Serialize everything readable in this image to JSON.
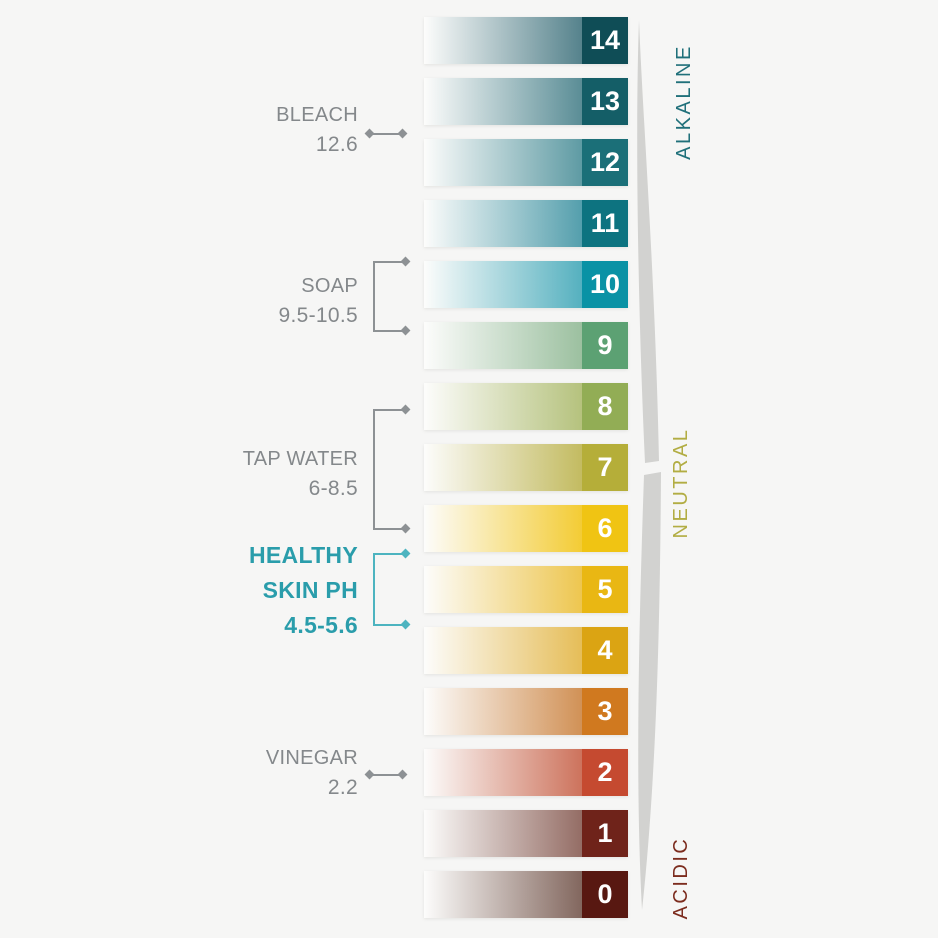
{
  "background": "#f6f6f5",
  "bars": [
    {
      "value": "14",
      "cap": "#0f4d56",
      "grad": "#52808a"
    },
    {
      "value": "13",
      "cap": "#145e67",
      "grad": "#578b94"
    },
    {
      "value": "12",
      "cap": "#1b6f78",
      "grad": "#5b99a2"
    },
    {
      "value": "11",
      "cap": "#0d7380",
      "grad": "#519dab"
    },
    {
      "value": "10",
      "cap": "#0a92a5",
      "grad": "#52afbe"
    },
    {
      "value": "9",
      "cap": "#5ca173",
      "grad": "#9abf9e"
    },
    {
      "value": "8",
      "cap": "#92ad55",
      "grad": "#b4c17b"
    },
    {
      "value": "7",
      "cap": "#b5ae39",
      "grad": "#c2ba5e"
    },
    {
      "value": "6",
      "cap": "#f0c413",
      "grad": "#f3cb31"
    },
    {
      "value": "5",
      "cap": "#e9b713",
      "grad": "#edc54c"
    },
    {
      "value": "4",
      "cap": "#dba413",
      "grad": "#e5bc55"
    },
    {
      "value": "3",
      "cap": "#d0791f",
      "grad": "#d08f53"
    },
    {
      "value": "2",
      "cap": "#c54a30",
      "grad": "#cc7059"
    },
    {
      "value": "1",
      "cap": "#6f231a",
      "grad": "#926a62"
    },
    {
      "value": "0",
      "cap": "#581811",
      "grad": "#80645b"
    }
  ],
  "annotations": [
    {
      "id": "bleach",
      "name": "BLEACH",
      "ph": "12.6",
      "lines": [
        "BLEACH",
        "12.6"
      ],
      "connector": "point",
      "color": "#84888b",
      "line_color": "#8d9194"
    },
    {
      "id": "soap",
      "name": "SOAP",
      "ph": "9.5-10.5",
      "lines": [
        "SOAP",
        "9.5-10.5"
      ],
      "connector": "range",
      "color": "#84888b",
      "line_color": "#8d9194"
    },
    {
      "id": "tap-water",
      "name": "TAP WATER",
      "ph": "6-8.5",
      "lines": [
        "TAP WATER",
        "6-8.5"
      ],
      "connector": "range",
      "color": "#84888b",
      "line_color": "#8d9194"
    },
    {
      "id": "healthy-skin",
      "name": "HEALTHY SKIN PH",
      "ph": "4.5-5.6",
      "lines": [
        "HEALTHY",
        "SKIN PH",
        "4.5-5.6"
      ],
      "connector": "range",
      "color": "#2a9dab",
      "line_color": "#4db4c0"
    },
    {
      "id": "vinegar",
      "name": "VINEGAR",
      "ph": "2.2",
      "lines": [
        "VINEGAR",
        "2.2"
      ],
      "connector": "point",
      "color": "#84888b",
      "line_color": "#8d9194"
    }
  ],
  "zones": [
    {
      "id": "alkaline",
      "label": "ALKALINE",
      "color": "#20707a"
    },
    {
      "id": "neutral",
      "label": "NEUTRAL",
      "color": "#b2ad43"
    },
    {
      "id": "acidic",
      "label": "ACIDIC",
      "color": "#7c2c1e"
    }
  ],
  "curve_color": "#d2d2d0",
  "chart_data": {
    "type": "scale",
    "scale_values": [
      14,
      13,
      12,
      11,
      10,
      9,
      8,
      7,
      6,
      5,
      4,
      3,
      2,
      1,
      0
    ],
    "zone_labels": [
      "ALKALINE",
      "NEUTRAL",
      "ACIDIC"
    ],
    "annotations": [
      {
        "substance": "BLEACH",
        "ph": "12.6"
      },
      {
        "substance": "SOAP",
        "ph": "9.5-10.5"
      },
      {
        "substance": "TAP WATER",
        "ph": "6-8.5"
      },
      {
        "substance": "HEALTHY SKIN PH",
        "ph": "4.5-5.6"
      },
      {
        "substance": "VINEGAR",
        "ph": "2.2"
      }
    ]
  }
}
